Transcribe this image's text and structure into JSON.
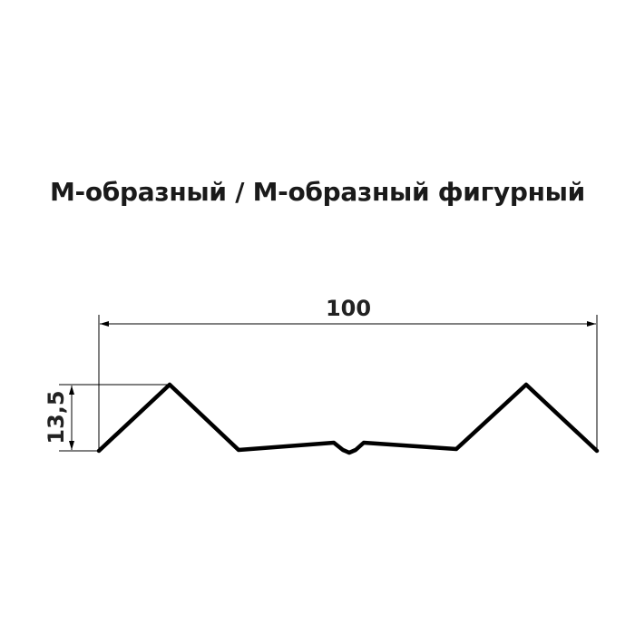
{
  "title": "М-образный / М-образный фигурный",
  "dimensions": {
    "width_label": "100",
    "height_label": "13,5"
  },
  "colors": {
    "profile": "#000000",
    "text": "#1a1a1a"
  }
}
